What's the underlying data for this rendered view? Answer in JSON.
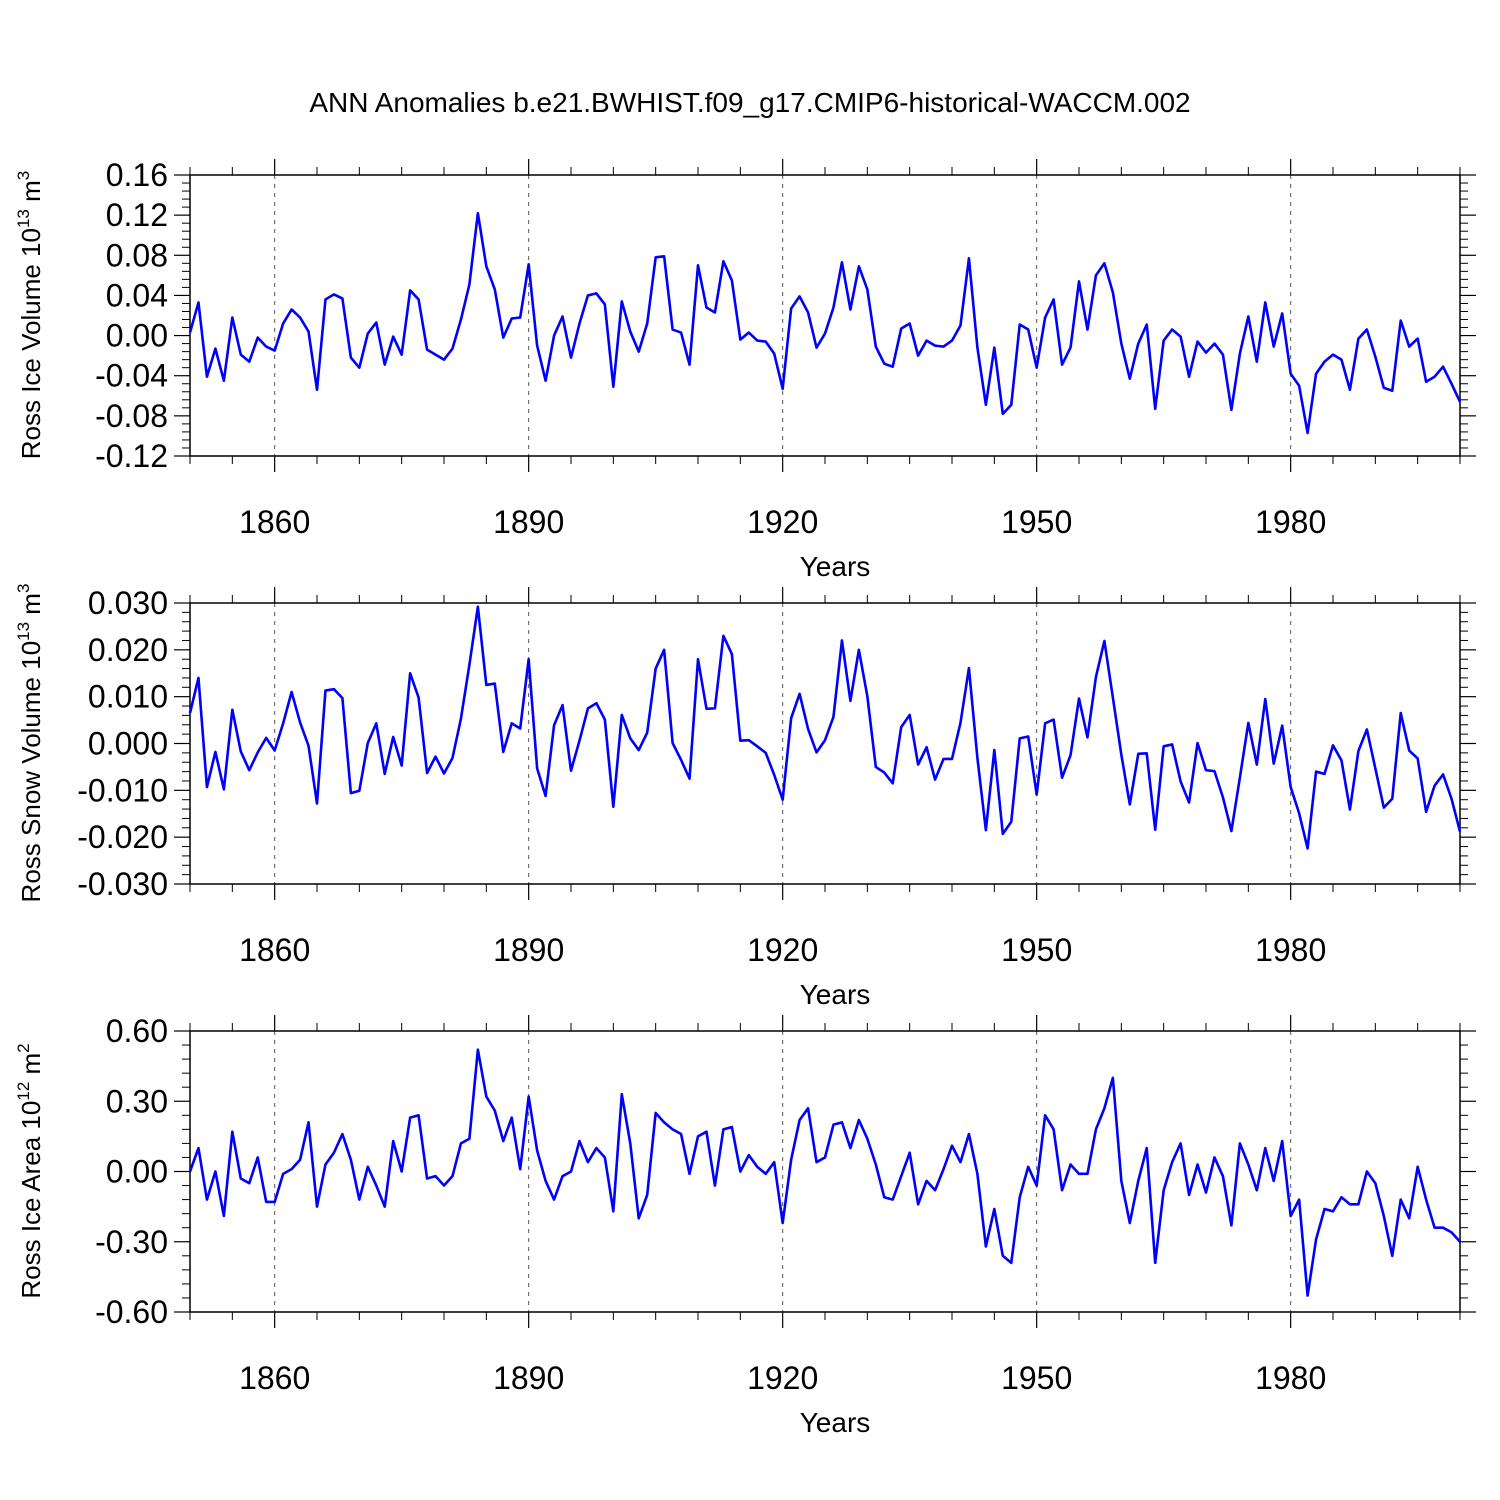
{
  "figure": {
    "title": "ANN Anomalies b.e21.BWHIST.f09_g17.CMIP6-historical-WACCM.002",
    "line_color": "#0000ff"
  },
  "chart_data": [
    {
      "type": "line",
      "ylabel": "Ross Ice Volume 10",
      "ylabel_exp": "13",
      "ylabel_unit": " m",
      "ylabel_unit_exp": "3",
      "xlabel": "Years",
      "xlim": [
        1850,
        2000
      ],
      "ylim": [
        -0.12,
        0.16
      ],
      "x_ticks": [
        1860,
        1890,
        1920,
        1950,
        1980
      ],
      "x_tick_labels": [
        "1860",
        "1890",
        "1920",
        "1950",
        "1980"
      ],
      "y_ticks": [
        -0.12,
        -0.08,
        -0.04,
        0.0,
        0.04,
        0.08,
        0.12,
        0.16
      ],
      "y_tick_labels": [
        "-0.12",
        "-0.08",
        "-0.04",
        "0.00",
        "0.04",
        "0.08",
        "0.12",
        "0.16"
      ],
      "x_start": 1850,
      "series": [
        {
          "values": [
            0.003,
            0.033,
            -0.041,
            -0.013,
            -0.045,
            0.018,
            -0.019,
            -0.026,
            -0.002,
            -0.011,
            -0.015,
            0.012,
            0.026,
            0.018,
            0.004,
            -0.054,
            0.036,
            0.041,
            0.037,
            -0.022,
            -0.032,
            0.002,
            0.013,
            -0.029,
            -0.001,
            -0.019,
            0.045,
            0.036,
            -0.014,
            -0.019,
            -0.024,
            -0.013,
            0.016,
            0.051,
            0.122,
            0.069,
            0.046,
            -0.002,
            0.017,
            0.018,
            0.071,
            -0.01,
            -0.045,
            0.0,
            0.019,
            -0.022,
            0.012,
            0.04,
            0.042,
            0.031,
            -0.051,
            0.034,
            0.004,
            -0.016,
            0.012,
            0.078,
            0.079,
            0.006,
            0.003,
            -0.029,
            0.07,
            0.028,
            0.023,
            0.074,
            0.055,
            -0.004,
            0.003,
            -0.005,
            -0.006,
            -0.018,
            -0.053,
            0.027,
            0.039,
            0.023,
            -0.012,
            0.002,
            0.028,
            0.073,
            0.026,
            0.069,
            0.046,
            -0.011,
            -0.028,
            -0.031,
            0.007,
            0.012,
            -0.02,
            -0.005,
            -0.01,
            -0.011,
            -0.005,
            0.01,
            0.077,
            -0.012,
            -0.069,
            -0.012,
            -0.078,
            -0.069,
            0.011,
            0.006,
            -0.032,
            0.018,
            0.036,
            -0.029,
            -0.012,
            0.054,
            0.006,
            0.06,
            0.072,
            0.043,
            -0.008,
            -0.043,
            -0.008,
            0.011,
            -0.073,
            -0.005,
            0.006,
            -0.001,
            -0.041,
            -0.006,
            -0.017,
            -0.008,
            -0.019,
            -0.074,
            -0.018,
            0.019,
            -0.026,
            0.033,
            -0.011,
            0.022,
            -0.038,
            -0.05,
            -0.097,
            -0.038,
            -0.026,
            -0.019,
            -0.024,
            -0.054,
            -0.003,
            0.006,
            -0.021,
            -0.052,
            -0.055,
            0.015,
            -0.011,
            -0.003,
            -0.046,
            -0.041,
            -0.031,
            -0.048,
            -0.066
          ]
        }
      ]
    },
    {
      "type": "line",
      "ylabel": "Ross Snow Volume 10",
      "ylabel_exp": "13",
      "ylabel_unit": " m",
      "ylabel_unit_exp": "3",
      "xlabel": "Years",
      "xlim": [
        1850,
        2000
      ],
      "ylim": [
        -0.03,
        0.03
      ],
      "x_ticks": [
        1860,
        1890,
        1920,
        1950,
        1980
      ],
      "x_tick_labels": [
        "1860",
        "1890",
        "1920",
        "1950",
        "1980"
      ],
      "y_ticks": [
        -0.03,
        -0.02,
        -0.01,
        0.0,
        0.01,
        0.02,
        0.03
      ],
      "y_tick_labels": [
        "-0.030",
        "-0.020",
        "-0.010",
        "0.000",
        "0.010",
        "0.020",
        "0.030"
      ],
      "x_start": 1850,
      "series": [
        {
          "values": [
            0.0065,
            0.014,
            -0.0093,
            -0.0018,
            -0.0098,
            0.0072,
            -0.0017,
            -0.0057,
            -0.0019,
            0.0012,
            -0.0015,
            0.0043,
            0.011,
            0.0045,
            -0.0005,
            -0.0128,
            0.0113,
            0.0116,
            0.0097,
            -0.0106,
            -0.0101,
            0.0001,
            0.0043,
            -0.0065,
            0.0014,
            -0.0047,
            0.015,
            0.0098,
            -0.0063,
            -0.0028,
            -0.0064,
            -0.0031,
            0.0053,
            0.0168,
            0.0292,
            0.0125,
            0.0128,
            -0.0018,
            0.0043,
            0.0032,
            0.018,
            -0.0053,
            -0.0112,
            0.0039,
            0.0082,
            -0.0058,
            0.0006,
            0.0075,
            0.0086,
            0.0051,
            -0.0135,
            0.0061,
            0.0011,
            -0.0014,
            0.0023,
            0.016,
            0.02,
            0.0001,
            -0.0035,
            -0.0075,
            0.018,
            0.0074,
            0.0075,
            0.023,
            0.0191,
            0.0006,
            0.0007,
            -0.0006,
            -0.002,
            -0.0067,
            -0.012,
            0.0054,
            0.0106,
            0.0031,
            -0.0019,
            0.0007,
            0.0057,
            0.022,
            0.0091,
            0.02,
            0.0101,
            -0.005,
            -0.0062,
            -0.0085,
            0.0035,
            0.0061,
            -0.0045,
            -0.0008,
            -0.0077,
            -0.0033,
            -0.0033,
            0.0044,
            0.0161,
            -0.0031,
            -0.0185,
            -0.0014,
            -0.0193,
            -0.0167,
            0.0011,
            0.0015,
            -0.0109,
            0.0043,
            0.0051,
            -0.0073,
            -0.0025,
            0.0096,
            0.0013,
            0.0142,
            0.0219,
            0.0098,
            -0.0024,
            -0.013,
            -0.0022,
            -0.0021,
            -0.0184,
            -0.0006,
            -0.0002,
            -0.0081,
            -0.0126,
            0.0001,
            -0.0057,
            -0.0059,
            -0.0115,
            -0.0187,
            -0.0073,
            0.0044,
            -0.0045,
            0.0095,
            -0.0043,
            0.0038,
            -0.0093,
            -0.0149,
            -0.0224,
            -0.006,
            -0.0065,
            -0.0004,
            -0.0036,
            -0.0141,
            -0.0016,
            0.003,
            -0.0053,
            -0.0137,
            -0.0118,
            0.0065,
            -0.0015,
            -0.0032,
            -0.0146,
            -0.009,
            -0.0066,
            -0.0118,
            -0.0188
          ]
        }
      ]
    },
    {
      "type": "line",
      "ylabel": "Ross Ice Area 10",
      "ylabel_exp": "12",
      "ylabel_unit": " m",
      "ylabel_unit_exp": "2",
      "xlabel": "Years",
      "xlim": [
        1850,
        2000
      ],
      "ylim": [
        -0.6,
        0.6
      ],
      "x_ticks": [
        1860,
        1890,
        1920,
        1950,
        1980
      ],
      "x_tick_labels": [
        "1860",
        "1890",
        "1920",
        "1950",
        "1980"
      ],
      "y_ticks": [
        -0.6,
        -0.3,
        0.0,
        0.3,
        0.6
      ],
      "y_tick_labels": [
        "-0.60",
        "-0.30",
        "0.00",
        "0.30",
        "0.60"
      ],
      "x_start": 1850,
      "series": [
        {
          "values": [
            0.0,
            0.1,
            -0.12,
            0.0,
            -0.19,
            0.17,
            -0.03,
            -0.05,
            0.06,
            -0.13,
            -0.13,
            -0.01,
            0.01,
            0.05,
            0.21,
            -0.15,
            0.03,
            0.08,
            0.16,
            0.05,
            -0.12,
            0.02,
            -0.06,
            -0.15,
            0.13,
            0.0,
            0.23,
            0.24,
            -0.03,
            -0.02,
            -0.06,
            -0.02,
            0.12,
            0.14,
            0.52,
            0.32,
            0.26,
            0.13,
            0.23,
            0.01,
            0.32,
            0.09,
            -0.04,
            -0.12,
            -0.02,
            0.0,
            0.13,
            0.04,
            0.1,
            0.06,
            -0.17,
            0.33,
            0.12,
            -0.2,
            -0.1,
            0.25,
            0.21,
            0.18,
            0.16,
            -0.01,
            0.15,
            0.17,
            -0.06,
            0.18,
            0.19,
            0.0,
            0.07,
            0.02,
            -0.01,
            0.04,
            -0.22,
            0.05,
            0.22,
            0.27,
            0.04,
            0.06,
            0.2,
            0.21,
            0.1,
            0.22,
            0.14,
            0.03,
            -0.11,
            -0.12,
            -0.02,
            0.08,
            -0.14,
            -0.04,
            -0.08,
            0.01,
            0.11,
            0.04,
            0.16,
            -0.01,
            -0.32,
            -0.16,
            -0.36,
            -0.39,
            -0.11,
            0.02,
            -0.06,
            0.24,
            0.18,
            -0.08,
            0.03,
            -0.01,
            -0.01,
            0.18,
            0.27,
            0.4,
            -0.04,
            -0.22,
            -0.04,
            0.1,
            -0.39,
            -0.08,
            0.04,
            0.12,
            -0.1,
            0.03,
            -0.09,
            0.06,
            -0.02,
            -0.23,
            0.12,
            0.03,
            -0.08,
            0.1,
            -0.04,
            0.13,
            -0.19,
            -0.12,
            -0.53,
            -0.29,
            -0.16,
            -0.17,
            -0.11,
            -0.14,
            -0.14,
            0.0,
            -0.05,
            -0.19,
            -0.36,
            -0.12,
            -0.2,
            0.02,
            -0.12,
            -0.24,
            -0.24,
            -0.26,
            -0.3
          ]
        }
      ]
    }
  ]
}
